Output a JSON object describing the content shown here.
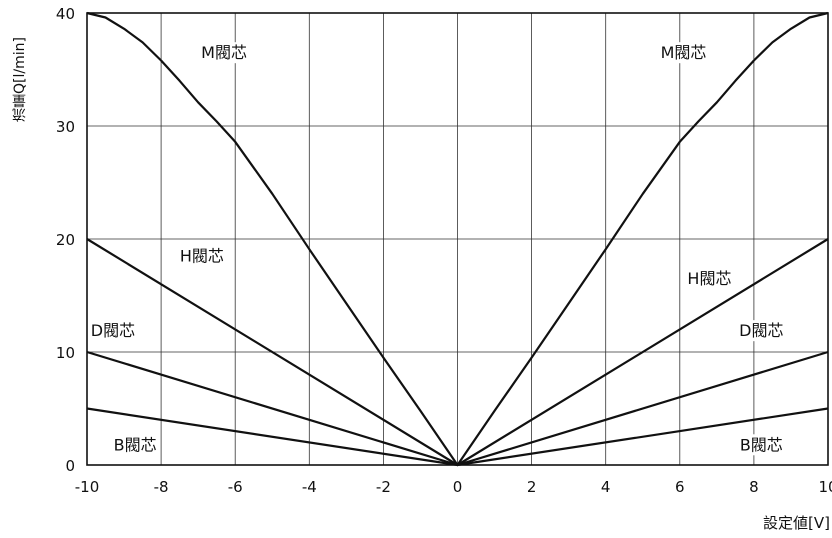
{
  "chart_data": {
    "type": "line",
    "xlabel": "設定値[V]",
    "ylabel": "流量Q[l/min]",
    "xlim": [
      -10,
      10
    ],
    "ylim": [
      0,
      40
    ],
    "x_ticks": [
      "-10",
      "-8",
      "-6",
      "-4",
      "-2",
      "0",
      "2",
      "4",
      "6",
      "8",
      "10"
    ],
    "y_ticks": [
      "0",
      "10",
      "20",
      "30",
      "40"
    ],
    "grid": true,
    "series": [
      {
        "name": "M閥芯",
        "x": [
          -10,
          -9.5,
          -9,
          -8.5,
          -8,
          -7.5,
          -7,
          -6.5,
          -6,
          -5,
          -4,
          -3,
          -2,
          -1,
          0,
          1,
          2,
          3,
          4,
          5,
          6,
          6.5,
          7,
          7.5,
          8,
          8.5,
          9,
          9.5,
          10
        ],
        "y": [
          40,
          39.6,
          38.6,
          37.4,
          35.8,
          34.0,
          32.1,
          30.4,
          28.6,
          24.0,
          19.1,
          14.3,
          9.5,
          4.8,
          0,
          4.8,
          9.5,
          14.3,
          19.1,
          24.0,
          28.6,
          30.4,
          32.1,
          34.0,
          35.8,
          37.4,
          38.6,
          39.6,
          40
        ]
      },
      {
        "name": "H閥芯",
        "x": [
          -10,
          0,
          10
        ],
        "y": [
          20,
          0,
          20
        ]
      },
      {
        "name": "D閥芯",
        "x": [
          -10,
          0,
          10
        ],
        "y": [
          10,
          0,
          10
        ]
      },
      {
        "name": "B閥芯",
        "x": [
          -10,
          0,
          10
        ],
        "y": [
          5,
          0,
          5
        ]
      }
    ],
    "annotations": [
      {
        "text": "M閥芯",
        "x": -6.3,
        "y": 36.4
      },
      {
        "text": "H閥芯",
        "x": -6.9,
        "y": 18.4
      },
      {
        "text": "D閥芯",
        "x": -9.3,
        "y": 11.8
      },
      {
        "text": "B閥芯",
        "x": -8.7,
        "y": 1.7
      },
      {
        "text": "M閥芯",
        "x": 6.1,
        "y": 36.4
      },
      {
        "text": "H閥芯",
        "x": 6.8,
        "y": 16.4
      },
      {
        "text": "D閥芯",
        "x": 8.2,
        "y": 11.8
      },
      {
        "text": "B閥芯",
        "x": 8.2,
        "y": 1.7
      }
    ]
  }
}
